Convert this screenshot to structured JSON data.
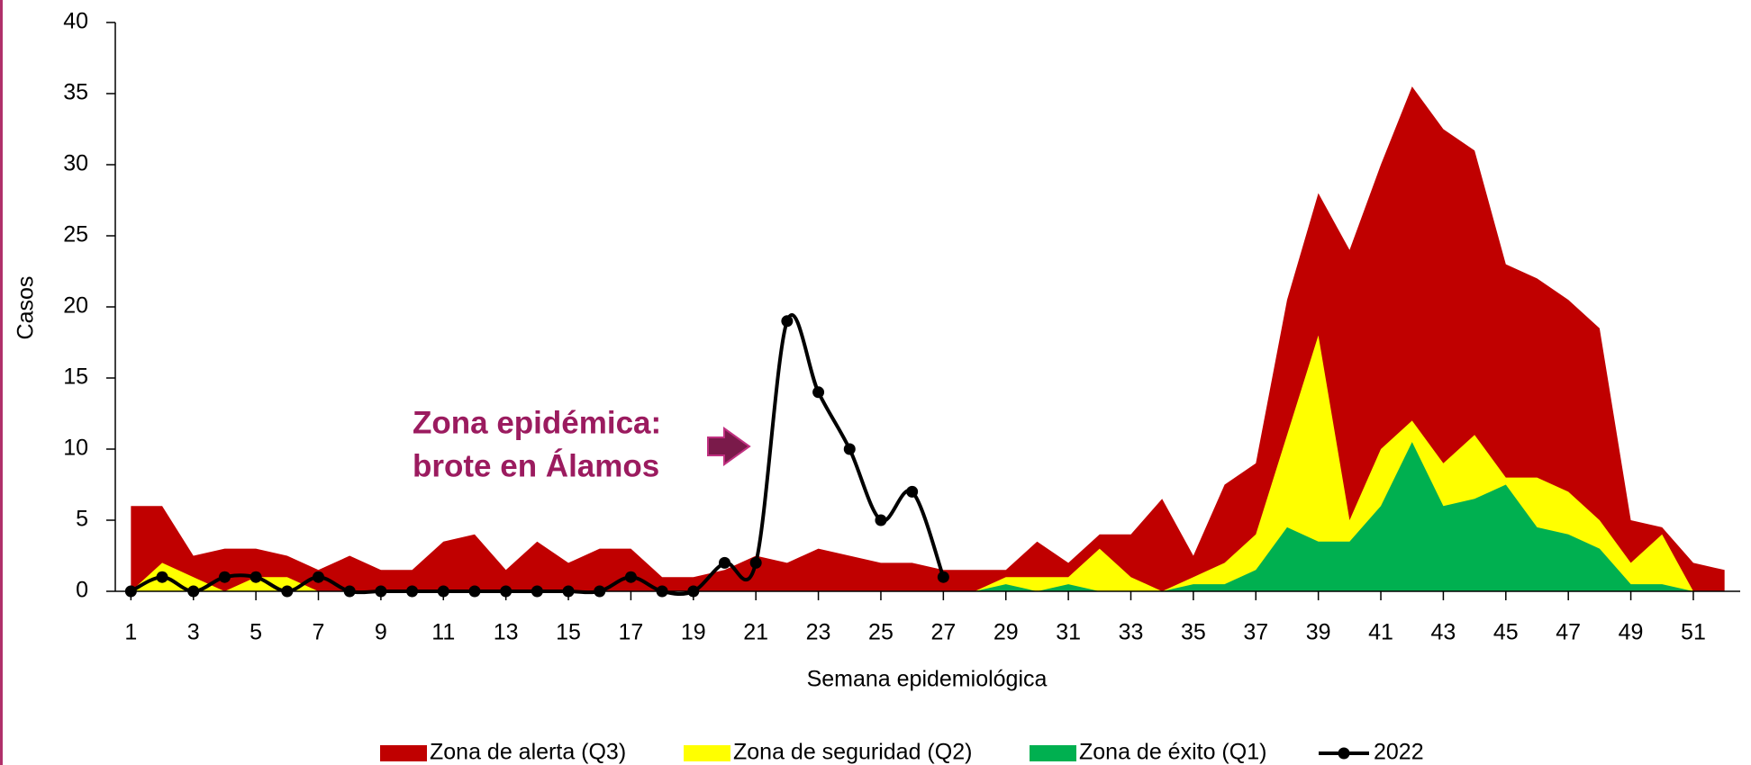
{
  "chart_data": {
    "type": "area",
    "xlabel": "Semana epidemiológica",
    "ylabel": "Casos",
    "x": [
      1,
      2,
      3,
      4,
      5,
      6,
      7,
      8,
      9,
      10,
      11,
      12,
      13,
      14,
      15,
      16,
      17,
      18,
      19,
      20,
      21,
      22,
      23,
      24,
      25,
      26,
      27,
      28,
      29,
      30,
      31,
      32,
      33,
      34,
      35,
      36,
      37,
      38,
      39,
      40,
      41,
      42,
      43,
      44,
      45,
      46,
      47,
      48,
      49,
      50,
      51,
      52
    ],
    "xlim": [
      0.5,
      52.5
    ],
    "xticks": [
      1,
      3,
      5,
      7,
      9,
      11,
      13,
      15,
      17,
      19,
      21,
      23,
      25,
      27,
      29,
      31,
      33,
      35,
      37,
      39,
      41,
      43,
      45,
      47,
      49,
      51
    ],
    "ylim": [
      0,
      40
    ],
    "yticks": [
      0,
      5,
      10,
      15,
      20,
      25,
      30,
      35,
      40
    ],
    "series": [
      {
        "name": "Zona de alerta (Q3)",
        "color": "#c00000",
        "kind": "area",
        "values": [
          6,
          6,
          2.5,
          3,
          3,
          2.5,
          1.5,
          2.5,
          1.5,
          1.5,
          3.5,
          4,
          1.5,
          3.5,
          2,
          3,
          3,
          1,
          1,
          1.5,
          2.5,
          2,
          3,
          2.5,
          2,
          2,
          1.5,
          1.5,
          1.5,
          3.5,
          2,
          4,
          4,
          6.5,
          2.5,
          7.5,
          9,
          20.5,
          28,
          24,
          30,
          35.5,
          32.5,
          31,
          23,
          22,
          20.5,
          18.5,
          5,
          4.5,
          2,
          1.5
        ]
      },
      {
        "name": "Zona de seguridad (Q2)",
        "color": "#ffff00",
        "kind": "area",
        "values": [
          0,
          2,
          1,
          0,
          1,
          1,
          0,
          0,
          0,
          0,
          0,
          0,
          0,
          0,
          0,
          0,
          0,
          0,
          0,
          0,
          0,
          0,
          0,
          0,
          0,
          0,
          0,
          0,
          1,
          1,
          1,
          3,
          1,
          0,
          1,
          2,
          4,
          11,
          18,
          5,
          10,
          12,
          9,
          11,
          8,
          8,
          7,
          5,
          2,
          4,
          0,
          0
        ]
      },
      {
        "name": "Zona de éxito (Q1)",
        "color": "#00b050",
        "kind": "area",
        "values": [
          0,
          0,
          0,
          0,
          0,
          0,
          0,
          0,
          0,
          0,
          0,
          0,
          0,
          0,
          0,
          0,
          0,
          0,
          0,
          0,
          0,
          0,
          0,
          0,
          0,
          0,
          0,
          0,
          0.5,
          0,
          0.5,
          0,
          0,
          0,
          0.5,
          0.5,
          1.5,
          4.5,
          3.5,
          3.5,
          6,
          10.5,
          6,
          6.5,
          7.5,
          4.5,
          4,
          3,
          0.5,
          0.5,
          0,
          0
        ]
      },
      {
        "name": "2022",
        "color": "#000000",
        "kind": "line",
        "values": [
          0,
          1,
          0,
          1,
          1,
          0,
          1,
          0,
          0,
          0,
          0,
          0,
          0,
          0,
          0,
          0,
          1,
          0,
          0,
          2,
          2,
          19,
          14,
          10,
          5,
          7,
          1,
          null,
          null,
          null,
          null,
          null,
          null,
          null,
          null,
          null,
          null,
          null,
          null,
          null,
          null,
          null,
          null,
          null,
          null,
          null,
          null,
          null,
          null,
          null,
          null,
          null
        ]
      }
    ],
    "annotation": [
      "Zona epidémica:",
      "brote en Álamos"
    ]
  }
}
